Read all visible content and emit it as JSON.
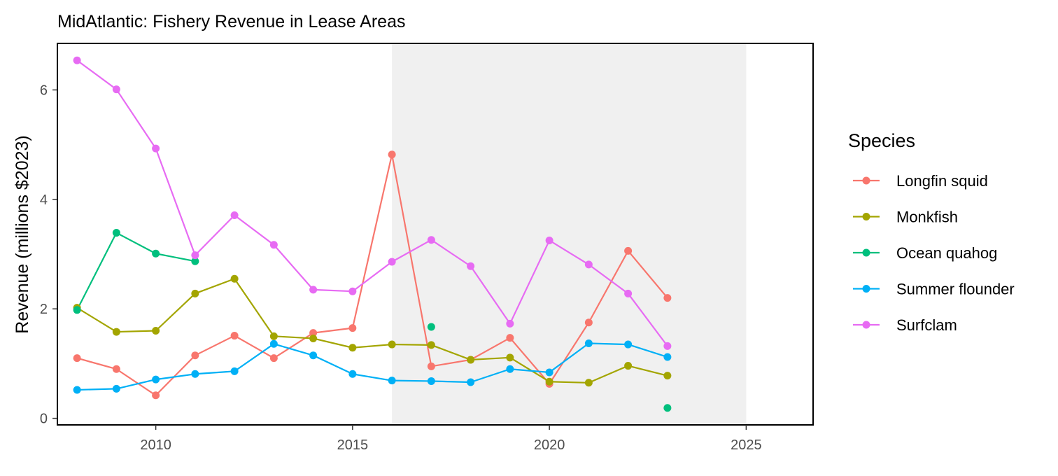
{
  "chart_data": {
    "type": "line",
    "title": "MidAtlantic: Fishery Revenue in Lease Areas",
    "xlabel": "",
    "ylabel": "Revenue (millions $2023)",
    "xlim": [
      2007.5,
      2026.7
    ],
    "ylim": [
      -0.12,
      6.85
    ],
    "x_ticks": [
      2010,
      2015,
      2020,
      2025
    ],
    "x_tick_labels": [
      "2010",
      "2015",
      "2020",
      "2025"
    ],
    "y_ticks": [
      0,
      2,
      4,
      6
    ],
    "y_tick_labels": [
      "0",
      "2",
      "4",
      "6"
    ],
    "shaded_region": {
      "x_start": 2016,
      "x_end": 2025,
      "color": "#f0f0f0"
    },
    "grid": false,
    "legend": {
      "title": "Species",
      "position": "right"
    },
    "series": [
      {
        "name": "Longfin squid",
        "color": "#F8766D",
        "segments": [
          {
            "x": [
              2008,
              2009,
              2010,
              2011,
              2012,
              2013,
              2014,
              2015,
              2016,
              2017,
              2018,
              2019,
              2020,
              2021,
              2022,
              2023
            ],
            "y": [
              1.1,
              0.9,
              0.42,
              1.15,
              1.51,
              1.1,
              1.56,
              1.65,
              4.82,
              0.95,
              1.07,
              1.47,
              0.63,
              1.75,
              3.06,
              2.2
            ]
          }
        ]
      },
      {
        "name": "Monkfish",
        "color": "#A3A500",
        "segments": [
          {
            "x": [
              2008,
              2009,
              2010,
              2011,
              2012,
              2013,
              2014,
              2015,
              2016,
              2017,
              2018,
              2019,
              2020,
              2021,
              2022,
              2023
            ],
            "y": [
              2.02,
              1.58,
              1.6,
              2.28,
              2.55,
              1.5,
              1.46,
              1.29,
              1.35,
              1.34,
              1.07,
              1.11,
              0.67,
              0.65,
              0.96,
              0.78
            ]
          }
        ]
      },
      {
        "name": "Ocean quahog",
        "color": "#00BF7D",
        "segments": [
          {
            "x": [
              2008,
              2009,
              2010,
              2011
            ],
            "y": [
              1.98,
              3.39,
              3.01,
              2.87
            ]
          },
          {
            "x": [
              2017
            ],
            "y": [
              1.67
            ]
          },
          {
            "x": [
              2023
            ],
            "y": [
              0.19
            ]
          }
        ]
      },
      {
        "name": "Summer flounder",
        "color": "#00B0F6",
        "segments": [
          {
            "x": [
              2008,
              2009,
              2010,
              2011,
              2012,
              2013,
              2014,
              2015,
              2016,
              2017,
              2018,
              2019,
              2020,
              2021,
              2022,
              2023
            ],
            "y": [
              0.52,
              0.54,
              0.71,
              0.81,
              0.86,
              1.36,
              1.15,
              0.81,
              0.69,
              0.68,
              0.66,
              0.9,
              0.84,
              1.37,
              1.35,
              1.12
            ]
          }
        ]
      },
      {
        "name": "Surfclam",
        "color": "#E76BF3",
        "segments": [
          {
            "x": [
              2008,
              2009,
              2010,
              2011,
              2012,
              2013,
              2014,
              2015,
              2016,
              2017,
              2018,
              2019,
              2020,
              2021,
              2022,
              2023
            ],
            "y": [
              6.54,
              6.01,
              4.93,
              2.98,
              3.71,
              3.17,
              2.35,
              2.32,
              2.86,
              3.26,
              2.78,
              1.73,
              3.25,
              2.81,
              2.28,
              1.32
            ]
          }
        ]
      }
    ]
  }
}
